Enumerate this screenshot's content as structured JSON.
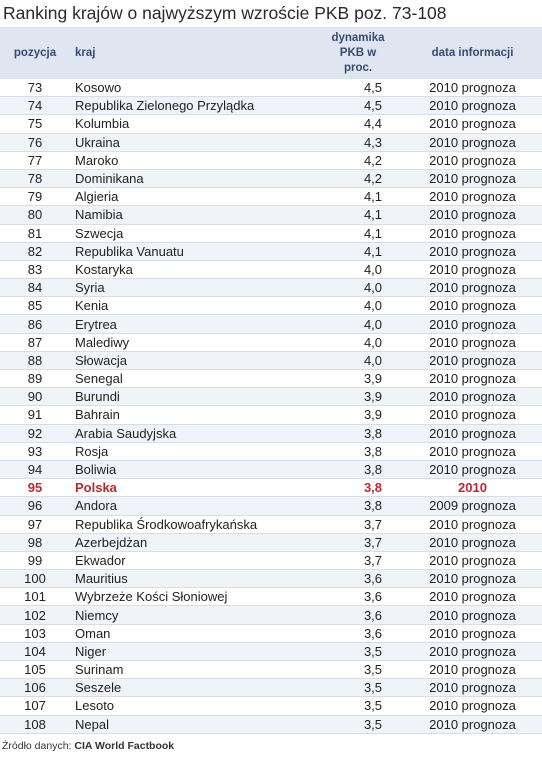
{
  "title": "Ranking krajów o najwyższym wzroście PKB poz. 73-108",
  "table": {
    "headers": {
      "pozycja": "pozycja",
      "kraj": "kraj",
      "dynamika_line1": "dynamika",
      "dynamika_line2": "PKB w",
      "dynamika_line3": "proc.",
      "data": "data informacji"
    },
    "rows": [
      {
        "pos": "73",
        "kraj": "Kosowo",
        "dyn": "4,5",
        "data": "2010 prognoza"
      },
      {
        "pos": "74",
        "kraj": "Republika Zielonego Przylądka",
        "dyn": "4,5",
        "data": "2010 prognoza"
      },
      {
        "pos": "75",
        "kraj": "Kolumbia",
        "dyn": "4,4",
        "data": "2010 prognoza"
      },
      {
        "pos": "76",
        "kraj": "Ukraina",
        "dyn": "4,3",
        "data": "2010 prognoza"
      },
      {
        "pos": "77",
        "kraj": "Maroko",
        "dyn": "4,2",
        "data": "2010 prognoza"
      },
      {
        "pos": "78",
        "kraj": "Dominikana",
        "dyn": "4,2",
        "data": "2010 prognoza"
      },
      {
        "pos": "79",
        "kraj": "Algieria",
        "dyn": "4,1",
        "data": "2010 prognoza"
      },
      {
        "pos": "80",
        "kraj": "Namibia",
        "dyn": "4,1",
        "data": "2010 prognoza"
      },
      {
        "pos": "81",
        "kraj": "Szwecja",
        "dyn": "4,1",
        "data": "2010 prognoza"
      },
      {
        "pos": "82",
        "kraj": "Republika Vanuatu",
        "dyn": "4,1",
        "data": "2010 prognoza"
      },
      {
        "pos": "83",
        "kraj": "Kostaryka",
        "dyn": "4,0",
        "data": "2010 prognoza"
      },
      {
        "pos": "84",
        "kraj": "Syria",
        "dyn": "4,0",
        "data": "2010 prognoza"
      },
      {
        "pos": "85",
        "kraj": "Kenia",
        "dyn": "4,0",
        "data": "2010 prognoza"
      },
      {
        "pos": "86",
        "kraj": "Erytrea",
        "dyn": "4,0",
        "data": "2010 prognoza"
      },
      {
        "pos": "87",
        "kraj": "Malediwy",
        "dyn": "4,0",
        "data": "2010 prognoza"
      },
      {
        "pos": "88",
        "kraj": "Słowacja",
        "dyn": "4,0",
        "data": "2010 prognoza"
      },
      {
        "pos": "89",
        "kraj": "Senegal",
        "dyn": "3,9",
        "data": "2010 prognoza"
      },
      {
        "pos": "90",
        "kraj": "Burundi",
        "dyn": "3,9",
        "data": "2010 prognoza"
      },
      {
        "pos": "91",
        "kraj": "Bahrain",
        "dyn": "3,9",
        "data": "2010 prognoza"
      },
      {
        "pos": "92",
        "kraj": "Arabia Saudyjska",
        "dyn": "3,8",
        "data": "2010 prognoza"
      },
      {
        "pos": "93",
        "kraj": "Rosja",
        "dyn": "3,8",
        "data": "2010 prognoza"
      },
      {
        "pos": "94",
        "kraj": "Boliwia",
        "dyn": "3,8",
        "data": "2010 prognoza"
      },
      {
        "pos": "95",
        "kraj": "Polska",
        "dyn": "3,8",
        "data": "2010",
        "highlight": true
      },
      {
        "pos": "96",
        "kraj": "Andora",
        "dyn": "3,8",
        "data": "2009 prognoza"
      },
      {
        "pos": "97",
        "kraj": "Republika Środkowoafrykańska",
        "dyn": "3,7",
        "data": "2010 prognoza"
      },
      {
        "pos": "98",
        "kraj": "Azerbejdżan",
        "dyn": "3,7",
        "data": "2010 prognoza"
      },
      {
        "pos": "99",
        "kraj": "Ekwador",
        "dyn": "3,7",
        "data": "2010 prognoza"
      },
      {
        "pos": "100",
        "kraj": "Mauritius",
        "dyn": "3,6",
        "data": "2010 prognoza"
      },
      {
        "pos": "101",
        "kraj": "Wybrzeże Kości Słoniowej",
        "dyn": "3,6",
        "data": "2010 prognoza"
      },
      {
        "pos": "102",
        "kraj": "Niemcy",
        "dyn": "3,6",
        "data": "2010 prognoza"
      },
      {
        "pos": "103",
        "kraj": "Oman",
        "dyn": "3,6",
        "data": "2010 prognoza"
      },
      {
        "pos": "104",
        "kraj": "Niger",
        "dyn": "3,5",
        "data": "2010 prognoza"
      },
      {
        "pos": "105",
        "kraj": "Surinam",
        "dyn": "3,5",
        "data": "2010 prognoza"
      },
      {
        "pos": "106",
        "kraj": "Seszele",
        "dyn": "3,5",
        "data": "2010 prognoza"
      },
      {
        "pos": "107",
        "kraj": "Lesoto",
        "dyn": "3,5",
        "data": "2010 prognoza"
      },
      {
        "pos": "108",
        "kraj": "Nepal",
        "dyn": "3,5",
        "data": "2010 prognoza"
      }
    ]
  },
  "source": {
    "label": "Źródło danych:",
    "value": "CIA World Factbook"
  },
  "colors": {
    "header_bg": "#dfe6f2",
    "header_text": "#3b4a6b",
    "stripe": "#f0f3f8",
    "highlight": "#c0272d"
  }
}
